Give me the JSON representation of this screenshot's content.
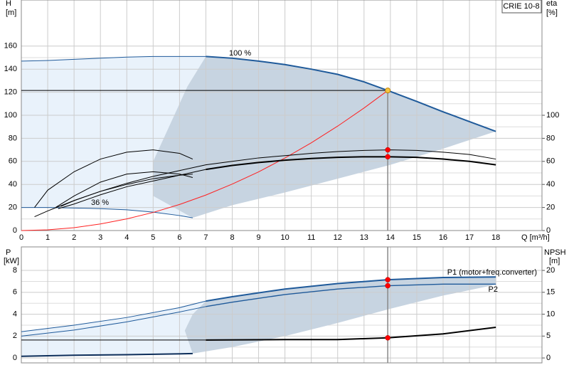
{
  "chart_data": [
    {
      "type": "line",
      "title": "CRIE 10-8",
      "xlabel": "Q [m³/h]",
      "ylabel": [
        "H",
        "[m]"
      ],
      "y2label": [
        "eta",
        "[%]"
      ],
      "xlim": [
        0,
        19.75
      ],
      "xticks": [
        0,
        1,
        2,
        3,
        4,
        5,
        6,
        7,
        8,
        9,
        10,
        11,
        12,
        13,
        14,
        15,
        16,
        17,
        18
      ],
      "ylim": [
        0,
        200
      ],
      "yticks": [
        0,
        20,
        40,
        60,
        80,
        100,
        120,
        140,
        160
      ],
      "y2lim": [
        0,
        200
      ],
      "y2ticks": [
        0,
        20,
        40,
        60,
        80,
        100
      ],
      "grid": true,
      "minor_grid": true,
      "xtick_labels": true,
      "areas": [
        {
          "color": "#e9f2fb",
          "x": [
            0,
            1,
            2,
            3,
            4,
            5,
            6,
            7,
            6.3,
            5.6,
            5,
            5,
            6.5,
            6,
            5,
            4,
            3,
            2,
            1,
            0
          ],
          "y": [
            147,
            147.5,
            148.5,
            149.5,
            150.5,
            151,
            151,
            151,
            125,
            90,
            60,
            30,
            11,
            13,
            16,
            18,
            19,
            19.5,
            20,
            20
          ]
        },
        {
          "color": "#c7d4e1",
          "x": [
            7,
            8,
            9,
            10,
            11,
            12,
            13,
            13.9,
            15,
            16,
            17,
            18,
            16,
            14,
            12,
            10,
            8,
            6.5,
            5,
            5,
            5.6,
            6.3
          ],
          "y": [
            151,
            149.5,
            147,
            144,
            140,
            135.5,
            129,
            121.5,
            112,
            103,
            94.5,
            86,
            71,
            57,
            45,
            33,
            22,
            11,
            30,
            60,
            90,
            125
          ]
        }
      ],
      "series": [
        {
          "color": "#1f5a9a",
          "width": 1,
          "x": [
            0,
            1,
            2,
            3,
            4,
            5,
            6,
            7
          ],
          "values": [
            147,
            147.5,
            148.5,
            149.5,
            150.5,
            151,
            151,
            151
          ]
        },
        {
          "name": "100 %",
          "color": "#1f5a9a",
          "width": 2,
          "x": [
            7,
            8,
            9,
            10,
            11,
            12,
            13,
            13.9,
            15,
            16,
            17,
            18
          ],
          "values": [
            151,
            149.5,
            147,
            144,
            140,
            135.5,
            129,
            121.5,
            112,
            103,
            94.5,
            86
          ]
        },
        {
          "name": "36 %",
          "color": "#1f5a9a",
          "width": 1,
          "x": [
            0,
            1,
            2,
            3,
            4,
            5,
            6,
            6.5
          ],
          "values": [
            20,
            20,
            19.5,
            19,
            18,
            16,
            13,
            11
          ]
        },
        {
          "color": "#ff2020",
          "width": 1,
          "x": [
            0,
            1,
            2,
            3,
            4,
            5,
            6,
            7,
            8,
            9,
            10,
            11,
            12,
            13,
            13.9
          ],
          "values": [
            0,
            0.6,
            2.5,
            5.7,
            10.1,
            15.7,
            22.6,
            30.8,
            40.3,
            50.9,
            62.9,
            76.1,
            90.6,
            106.3,
            121.5
          ]
        },
        {
          "color": "#000000",
          "width": 1,
          "axis": "y2",
          "x": [
            1.5,
            2,
            3,
            4,
            5,
            6,
            7,
            8,
            9,
            10,
            11,
            12,
            13,
            14,
            15,
            16,
            17,
            18
          ],
          "values": [
            21,
            26,
            34,
            41,
            47,
            52,
            57,
            60,
            63,
            65,
            67,
            68.5,
            69.5,
            70,
            69.5,
            68,
            66,
            62
          ]
        },
        {
          "color": "#000000",
          "width": 1,
          "axis": "y2",
          "x": [
            1.4,
            2,
            3,
            4,
            5,
            6,
            7
          ],
          "values": [
            19,
            23,
            31,
            38,
            43,
            48,
            53
          ]
        },
        {
          "color": "#000000",
          "width": 2,
          "axis": "y2",
          "x": [
            7,
            8,
            9,
            10,
            11,
            12,
            13,
            14,
            15,
            16,
            17,
            18
          ],
          "values": [
            53,
            56.5,
            59,
            61,
            62.5,
            63.5,
            64,
            64,
            63.5,
            62,
            60,
            57
          ]
        },
        {
          "color": "#000000",
          "width": 1,
          "axis": "y2",
          "x": [
            0.5,
            1,
            2,
            3,
            4,
            5,
            6,
            6.5
          ],
          "values": [
            20,
            35,
            51,
            62,
            68,
            70,
            67,
            62
          ]
        },
        {
          "color": "#000000",
          "width": 1,
          "axis": "y2",
          "x": [
            1.3,
            2,
            3,
            4,
            5,
            6,
            6.5
          ],
          "values": [
            20,
            30,
            42,
            49,
            51,
            49,
            46
          ]
        },
        {
          "color": "#000000",
          "width": 1,
          "axis": "y2",
          "x": [
            0.5,
            1,
            2,
            3,
            4,
            5,
            6,
            6.5
          ],
          "values": [
            12,
            17,
            26,
            34,
            40,
            45,
            48,
            49
          ]
        }
      ],
      "operating_point": {
        "x": 13.9,
        "y": 121.5,
        "color": "#f5c542"
      },
      "points": [
        {
          "x": 13.9,
          "y": 70,
          "axis": "y2",
          "color": "#ff0000"
        },
        {
          "x": 13.9,
          "y": 64,
          "axis": "y2",
          "color": "#ff0000"
        }
      ]
    },
    {
      "type": "line",
      "ylabel": [
        "P",
        "[kW]"
      ],
      "y2label": [
        "NPSH",
        "[m]"
      ],
      "xlim": [
        0,
        19.75
      ],
      "xticks": [
        0,
        1,
        2,
        3,
        4,
        5,
        6,
        7,
        8,
        9,
        10,
        11,
        12,
        13,
        14,
        15,
        16,
        17,
        18
      ],
      "ylim": [
        -0.45,
        10.15
      ],
      "yticks": [
        0,
        2,
        4,
        6,
        8
      ],
      "y2lim": [
        -1.125,
        25.375
      ],
      "y2ticks": [
        0,
        5,
        10,
        15,
        20
      ],
      "grid": true,
      "minor_grid": true,
      "xtick_labels": false,
      "areas": [
        {
          "color": "#e9f2fb",
          "x": [
            0,
            2,
            4,
            6,
            7,
            6.5,
            6.2,
            6.5,
            4,
            2,
            0
          ],
          "y": [
            2.4,
            3.0,
            3.7,
            4.6,
            5.2,
            4.0,
            2.5,
            0.4,
            0.3,
            0.25,
            0.15
          ]
        },
        {
          "color": "#c7d4e1",
          "x": [
            7,
            8,
            10,
            12,
            13.9,
            16,
            18,
            18,
            16,
            14,
            12,
            10,
            8,
            6.5,
            6.2,
            6.5
          ],
          "y": [
            5.2,
            5.6,
            6.3,
            6.8,
            7.15,
            7.35,
            7.4,
            6.7,
            5.7,
            4.5,
            3.2,
            2,
            1,
            0.4,
            2.5,
            4.0
          ]
        }
      ],
      "series": [
        {
          "color": "#1f5a9a",
          "width": 1,
          "x": [
            0,
            2,
            4,
            6,
            7
          ],
          "values": [
            2.4,
            3.0,
            3.7,
            4.6,
            5.2
          ]
        },
        {
          "name": "P1 (motor+freq.converter)",
          "color": "#1f5a9a",
          "width": 2,
          "x": [
            7,
            8,
            10,
            12,
            13.9,
            16,
            18
          ],
          "values": [
            5.2,
            5.6,
            6.3,
            6.8,
            7.15,
            7.35,
            7.4
          ]
        },
        {
          "color": "#1f5a9a",
          "width": 1,
          "x": [
            0,
            2,
            4,
            6,
            7
          ],
          "values": [
            2.0,
            2.55,
            3.3,
            4.2,
            4.7
          ]
        },
        {
          "name": "P2",
          "color": "#1f5a9a",
          "width": 1.4,
          "x": [
            7,
            8,
            10,
            12,
            13.9,
            16,
            18
          ],
          "values": [
            4.7,
            5.1,
            5.8,
            6.3,
            6.6,
            6.75,
            6.75
          ]
        },
        {
          "color": "#000000",
          "width": 1,
          "axis": "y2",
          "x": [
            0,
            7
          ],
          "values": [
            4.1,
            4.1
          ]
        },
        {
          "color": "#000000",
          "width": 2,
          "axis": "y2",
          "x": [
            7,
            10,
            12,
            13.9,
            16,
            18
          ],
          "values": [
            4.1,
            4.2,
            4.2,
            4.6,
            5.5,
            7.0
          ]
        },
        {
          "color": "#0d2e5a",
          "width": 2,
          "x": [
            0,
            2,
            4,
            6.5
          ],
          "values": [
            0.15,
            0.25,
            0.3,
            0.4
          ]
        }
      ],
      "points": [
        {
          "x": 13.9,
          "y": 7.15,
          "color": "#ff0000"
        },
        {
          "x": 13.9,
          "y": 6.6,
          "color": "#ff0000"
        },
        {
          "x": 13.9,
          "y": 4.6,
          "axis": "y2",
          "color": "#ff0000"
        }
      ]
    }
  ]
}
